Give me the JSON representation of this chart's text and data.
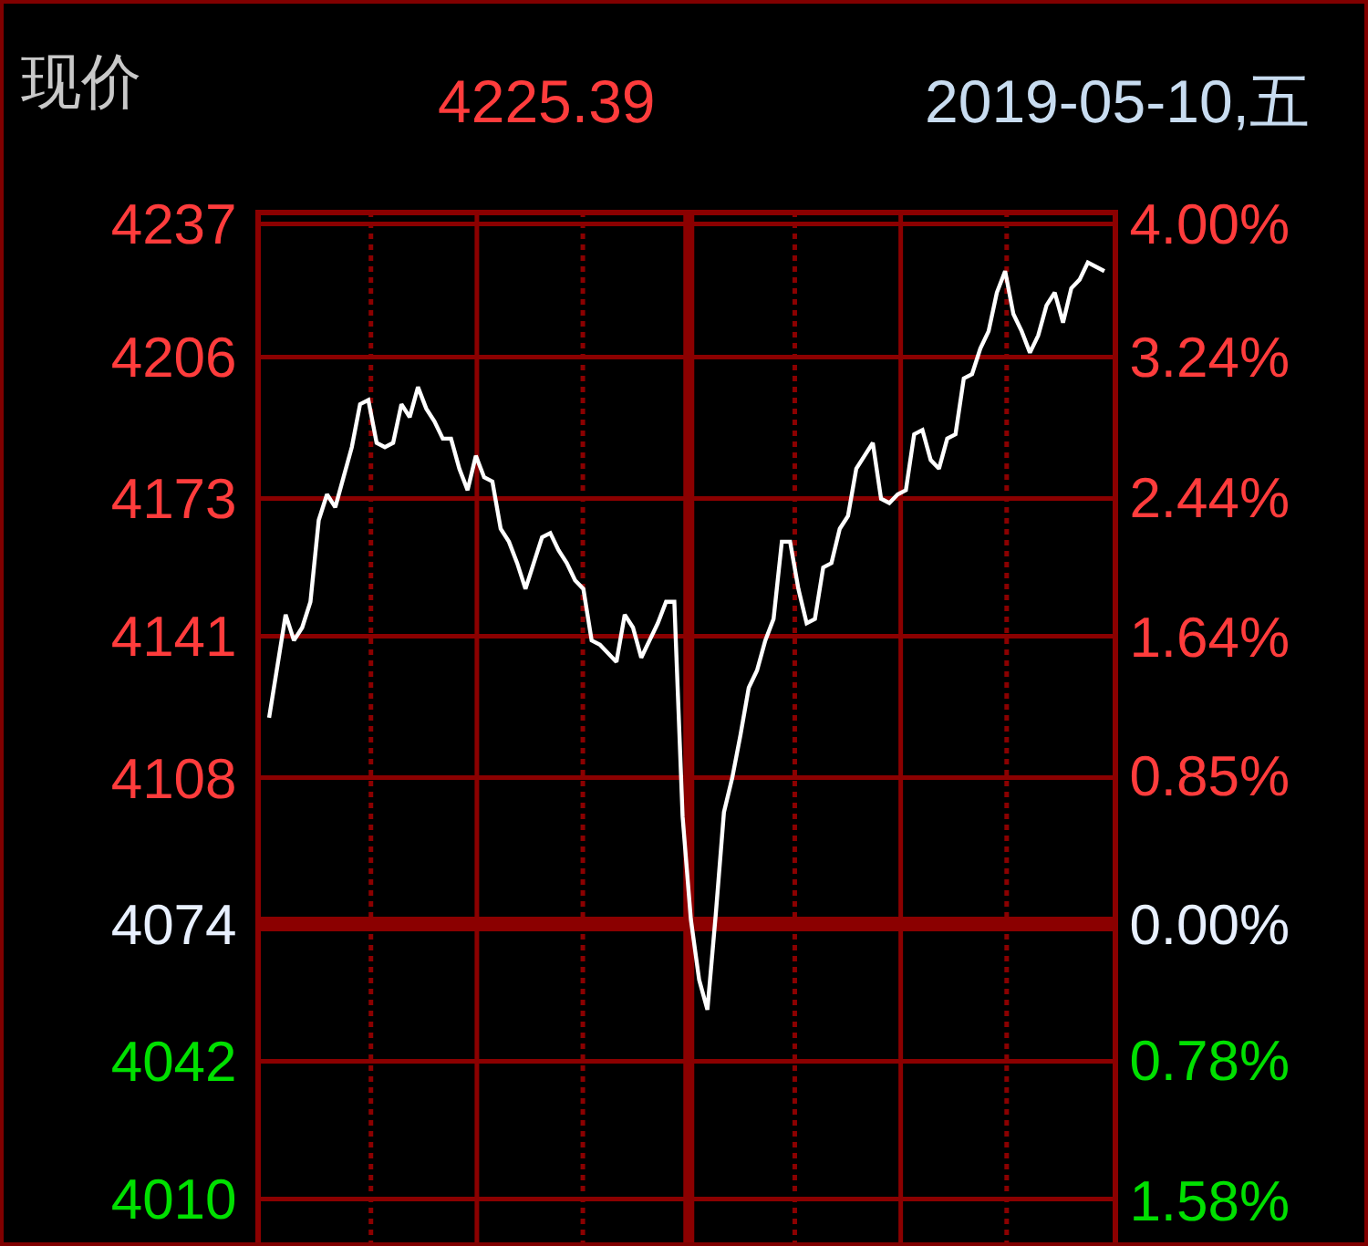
{
  "chart_data": {
    "type": "line",
    "title": "现价",
    "annotations": [
      "4225.39",
      "2019-05-10,五"
    ],
    "categories": [
      null,
      null,
      null,
      null,
      null,
      null,
      null,
      null,
      null,
      null,
      null,
      null,
      null,
      null,
      null,
      null,
      null,
      null,
      null,
      null,
      null,
      null,
      null,
      null,
      null,
      null,
      null,
      null,
      null,
      null,
      null,
      null,
      null,
      null,
      null,
      null,
      null,
      null,
      null,
      null,
      null,
      null,
      null,
      null,
      null,
      null,
      null,
      null,
      null,
      null,
      null,
      null,
      null,
      null,
      null,
      null,
      null,
      null,
      null,
      null,
      null,
      null,
      null,
      null,
      null,
      null,
      null,
      null,
      null,
      null,
      null,
      null,
      null,
      null,
      null,
      null,
      null,
      null,
      null,
      null,
      null,
      null,
      null,
      null,
      null,
      null,
      null,
      null,
      null,
      null,
      null,
      null,
      null,
      null,
      null,
      null,
      null,
      null,
      null,
      null,
      null,
      null
    ],
    "series": [
      {
        "color": "#ffffff",
        "values": [
          4122,
          4134,
          4146,
          4140,
          4143,
          4149,
          4168,
          4174,
          4171,
          4178,
          4185,
          4195,
          4196,
          4186,
          4185,
          4186,
          4195,
          4192,
          4199,
          4194,
          4191,
          4187,
          4187,
          4180,
          4175,
          4183,
          4178,
          4177,
          4166,
          4163,
          4158,
          4152,
          4158,
          4164,
          4165,
          4161,
          4158,
          4154,
          4152,
          4140,
          4139,
          4137,
          4135,
          4146,
          4143,
          4136,
          4140,
          4144,
          4149,
          4149,
          4099,
          4075,
          4061,
          4054,
          4076,
          4100,
          4108,
          4118,
          4129,
          4133,
          4140,
          4145,
          4163,
          4163,
          4152,
          4144,
          4145,
          4157,
          4158,
          4166,
          4169,
          4180,
          4183,
          4186,
          4173,
          4172,
          4174,
          4175,
          4188,
          4189,
          4182,
          4180,
          4187,
          4188,
          4201,
          4202,
          4208,
          4212,
          4221,
          4226,
          4216,
          4212,
          4207,
          4211,
          4218,
          4221,
          4214,
          4222,
          4224,
          4228,
          4227,
          4226
        ]
      }
    ],
    "ylim": [
      3999,
      4239
    ],
    "yticks": [
      4237,
      4206,
      4173,
      4141,
      4108,
      4074,
      4042,
      4010
    ],
    "y2lim": [
      -1.84,
      4.05
    ],
    "y2ticks": [
      {
        "value": 4,
        "label": "4.00%"
      },
      {
        "value": 3.24,
        "label": "3.24%"
      },
      {
        "value": 2.44,
        "label": "2.44%"
      },
      {
        "value": 1.64,
        "label": "1.64%"
      },
      {
        "value": 0.85,
        "label": "0.85%"
      },
      {
        "value": 0,
        "label": "0.00%"
      },
      {
        "value": -0.78,
        "label": "0.78%"
      },
      {
        "value": -1.58,
        "label": "1.58%"
      }
    ],
    "ref_lines": [
      {
        "axis": "y",
        "value": 4074,
        "color": "#8b0000"
      }
    ],
    "grid": true,
    "tick_labels": "y"
  }
}
